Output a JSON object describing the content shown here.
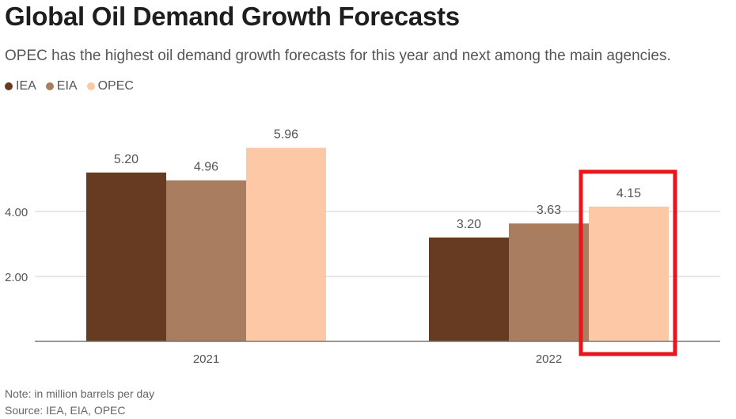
{
  "title": "Global Oil Demand Growth Forecasts",
  "subtitle": "OPEC has the highest oil demand growth forecasts for this year and next among the main agencies.",
  "note": "Note: in million barrels per day",
  "source": "Source: IEA, EIA, OPEC",
  "colors": {
    "IEA": "#673a22",
    "EIA": "#a97d60",
    "OPEC": "#fdc8a6",
    "highlight": "#e8151d",
    "grid": "#cccccc",
    "axis": "#777777"
  },
  "chart_data": {
    "type": "bar",
    "categories": [
      "2021",
      "2022"
    ],
    "series": [
      {
        "name": "IEA",
        "values": [
          5.2,
          3.2
        ],
        "labels": [
          "5.20",
          "3.20"
        ]
      },
      {
        "name": "EIA",
        "values": [
          4.96,
          3.63
        ],
        "labels": [
          "4.96",
          "3.63"
        ]
      },
      {
        "name": "OPEC",
        "values": [
          5.96,
          4.15
        ],
        "labels": [
          "5.96",
          "4.15"
        ]
      }
    ],
    "yticks": [
      2,
      4
    ],
    "ytick_labels": [
      "2.00",
      "4.00"
    ],
    "ylim": [
      0,
      6.3
    ],
    "grid": true,
    "legend_position": "top-left",
    "highlight": {
      "series": "OPEC",
      "category": "2022"
    }
  }
}
